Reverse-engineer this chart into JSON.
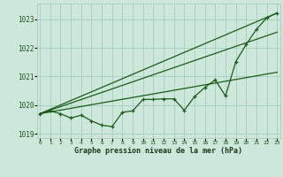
{
  "xlabel": "Graphe pression niveau de la mer (hPa)",
  "background_color": "#cde8db",
  "grid_color": "#a0c8b8",
  "line_color": "#1a5c1a",
  "x_values": [
    0,
    1,
    2,
    3,
    4,
    5,
    6,
    7,
    8,
    9,
    10,
    11,
    12,
    13,
    14,
    15,
    16,
    17,
    18,
    19,
    20,
    21,
    22,
    23
  ],
  "main_series": [
    1019.7,
    1019.8,
    1019.7,
    1019.55,
    1019.65,
    1019.45,
    1019.3,
    1019.25,
    1019.75,
    1019.8,
    1020.2,
    1020.2,
    1020.22,
    1020.22,
    1019.82,
    1020.3,
    1020.62,
    1020.88,
    1020.32,
    1021.52,
    1022.12,
    1022.65,
    1023.05,
    1023.22
  ],
  "trend_line1_x": [
    0,
    23
  ],
  "trend_line1_y": [
    1019.7,
    1023.22
  ],
  "trend_line2_x": [
    0,
    23
  ],
  "trend_line2_y": [
    1019.7,
    1022.55
  ],
  "trend_line3_x": [
    0,
    23
  ],
  "trend_line3_y": [
    1019.7,
    1021.15
  ],
  "ylim": [
    1018.85,
    1023.55
  ],
  "yticks": [
    1019,
    1020,
    1021,
    1022,
    1023
  ],
  "xlim": [
    -0.3,
    23.3
  ],
  "xtick_labels": [
    "0",
    "1",
    "2",
    "3",
    "4",
    "5",
    "6",
    "7",
    "8",
    "9",
    "10",
    "11",
    "12",
    "13",
    "14",
    "15",
    "16",
    "17",
    "18",
    "19",
    "20",
    "21",
    "22",
    "23"
  ]
}
